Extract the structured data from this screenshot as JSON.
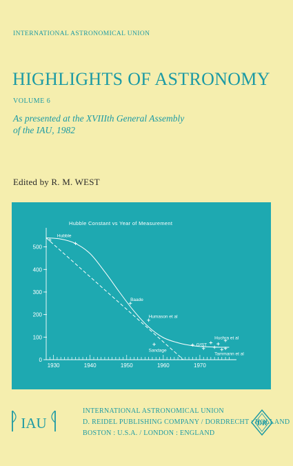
{
  "cover": {
    "series_org": "INTERNATIONAL ASTRONOMICAL UNION",
    "title": "HIGHLIGHTS OF ASTRONOMY",
    "volume": "VOLUME 6",
    "subtitle_line1": "As presented at the XVIIIth General Assembly",
    "subtitle_line2": "of the IAU, 1982",
    "editor": "Edited by R. M. WEST"
  },
  "publisher": {
    "line1": "INTERNATIONAL ASTRONOMICAL UNION",
    "line2": "D. REIDEL PUBLISHING COMPANY / DORDRECHT : HOLLAND",
    "line3": "BOSTON : U.S.A. / LONDON : ENGLAND",
    "iau_logo_text": "IAU",
    "reidel_logo_text": "DR"
  },
  "colors": {
    "background": "#f5eeae",
    "accent": "#1c9aa4",
    "panel": "#1ea9b1"
  },
  "chart_data": {
    "type": "line",
    "title": "Hubble Constant vs Year of Measurement",
    "xlabel": "",
    "ylabel": "",
    "xlim": [
      1928,
      1980
    ],
    "ylim": [
      0,
      560
    ],
    "x_ticks": [
      1930,
      1940,
      1950,
      1960,
      1970
    ],
    "y_ticks": [
      0,
      100,
      200,
      300,
      400,
      500
    ],
    "series": [
      {
        "style": "solid",
        "x": [
          1928,
          1932,
          1936,
          1940,
          1944,
          1948,
          1952,
          1956,
          1960,
          1964,
          1968,
          1972,
          1976,
          1978
        ],
        "y": [
          540,
          535,
          515,
          470,
          390,
          300,
          215,
          145,
          98,
          75,
          62,
          57,
          55,
          55
        ]
      },
      {
        "style": "dashed",
        "x": [
          1928,
          1965.5
        ],
        "y": [
          540,
          0
        ]
      }
    ],
    "points": [
      {
        "x": 1929,
        "y": 530
      },
      {
        "x": 1936,
        "y": 515
      },
      {
        "x": 1951,
        "y": 250
      },
      {
        "x": 1956,
        "y": 175
      },
      {
        "x": 1957.5,
        "y": 68
      },
      {
        "x": 1968,
        "y": 65
      },
      {
        "x": 1971,
        "y": 50
      },
      {
        "x": 1973,
        "y": 75
      },
      {
        "x": 1974,
        "y": 55
      },
      {
        "x": 1975,
        "y": 70
      },
      {
        "x": 1976,
        "y": 45
      },
      {
        "x": 1977,
        "y": 85
      },
      {
        "x": 1977,
        "y": 50
      }
    ],
    "annotations": [
      {
        "text": "Hubble",
        "x": 1931,
        "y": 543
      },
      {
        "text": "Baade",
        "x": 1951,
        "y": 260
      },
      {
        "text": "Humason et al",
        "x": 1956,
        "y": 185
      },
      {
        "text": "Sandage",
        "x": 1956,
        "y": 35
      },
      {
        "text": "G²ST",
        "x": 1969,
        "y": 60
      },
      {
        "text": "Huchra et al",
        "x": 1974,
        "y": 90
      },
      {
        "text": "Tammann et al",
        "x": 1974,
        "y": 20
      }
    ]
  }
}
